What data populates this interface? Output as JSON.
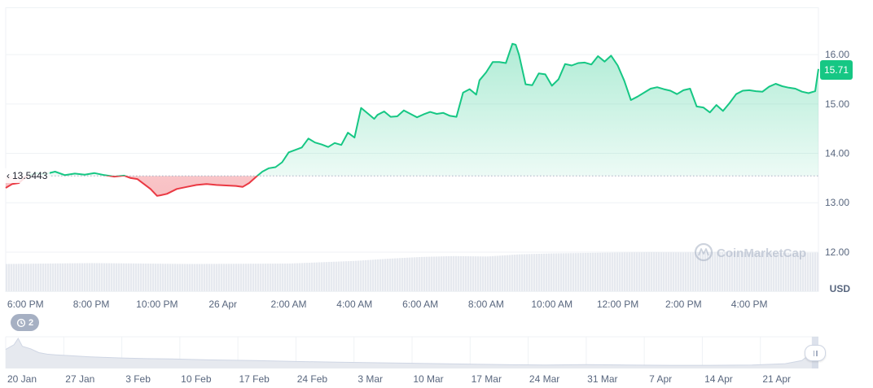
{
  "colors": {
    "up": "#16c784",
    "down": "#ea3943",
    "grid": "#eff2f5",
    "volume": "#e6e9ef",
    "text": "#58667e"
  },
  "watermark": {
    "icon": "coinmarketcap-logo-icon",
    "text": "CoinMarketCap"
  },
  "zoom_badge": {
    "icon": "history-icon",
    "count": "2"
  },
  "chart_data": [
    {
      "type": "area",
      "baseline_label": "13.5443",
      "baseline_value": 13.5443,
      "last_price_label": "15.71",
      "currency_label": "USD",
      "ylim": [
        11.2,
        16.95
      ],
      "y_ticks": [
        "16.00",
        "15.00",
        "14.00",
        "13.00",
        "12.00"
      ],
      "y_tick_values": [
        16,
        15,
        14,
        13,
        12
      ],
      "xlim": [
        17.4,
        42.1
      ],
      "x_ticks": [
        "6:00 PM",
        "8:00 PM",
        "10:00 PM",
        "26 Apr",
        "2:00 AM",
        "4:00 AM",
        "6:00 AM",
        "8:00 AM",
        "10:00 AM",
        "12:00 PM",
        "2:00 PM",
        "4:00 PM"
      ],
      "x_tick_values": [
        18,
        20,
        22,
        24,
        26,
        28,
        30,
        32,
        34,
        36,
        38,
        40
      ],
      "price_series": {
        "x": [
          17.4,
          17.6,
          17.8,
          18.0,
          18.3,
          18.6,
          18.9,
          19.2,
          19.5,
          19.8,
          20.1,
          20.4,
          20.7,
          21.0,
          21.2,
          21.4,
          21.6,
          21.8,
          22.0,
          22.1,
          22.3,
          22.6,
          22.9,
          23.2,
          23.5,
          23.8,
          24.1,
          24.4,
          24.6,
          24.8,
          25.0,
          25.2,
          25.4,
          25.6,
          25.8,
          26.0,
          26.2,
          26.4,
          26.6,
          26.8,
          27.0,
          27.2,
          27.4,
          27.6,
          27.8,
          28.0,
          28.2,
          28.4,
          28.6,
          28.7,
          28.9,
          29.1,
          29.3,
          29.5,
          29.7,
          29.9,
          30.1,
          30.3,
          30.5,
          30.7,
          30.9,
          31.1,
          31.3,
          31.5,
          31.7,
          31.8,
          32.0,
          32.2,
          32.4,
          32.6,
          32.8,
          32.9,
          33.0,
          33.2,
          33.4,
          33.6,
          33.8,
          34.0,
          34.2,
          34.4,
          34.6,
          34.8,
          35.0,
          35.2,
          35.4,
          35.6,
          35.8,
          36.0,
          36.2,
          36.4,
          36.6,
          36.8,
          37.0,
          37.2,
          37.4,
          37.6,
          37.8,
          38.0,
          38.2,
          38.4,
          38.6,
          38.8,
          39.0,
          39.2,
          39.4,
          39.6,
          39.8,
          40.0,
          40.2,
          40.4,
          40.6,
          40.8,
          41.0,
          41.2,
          41.4,
          41.6,
          41.8,
          42.0,
          42.1
        ],
        "values": [
          13.3,
          13.38,
          13.4,
          13.52,
          13.6,
          13.58,
          13.63,
          13.56,
          13.59,
          13.57,
          13.6,
          13.56,
          13.53,
          13.55,
          13.5,
          13.48,
          13.38,
          13.28,
          13.14,
          13.15,
          13.18,
          13.28,
          13.32,
          13.36,
          13.38,
          13.36,
          13.35,
          13.34,
          13.32,
          13.4,
          13.52,
          13.63,
          13.7,
          13.72,
          13.82,
          14.02,
          14.07,
          14.12,
          14.3,
          14.22,
          14.18,
          14.13,
          14.21,
          14.17,
          14.42,
          14.32,
          14.92,
          14.81,
          14.7,
          14.78,
          14.85,
          14.74,
          14.75,
          14.87,
          14.8,
          14.73,
          14.79,
          14.84,
          14.8,
          14.82,
          14.76,
          14.74,
          15.23,
          15.3,
          15.19,
          15.48,
          15.64,
          15.85,
          15.85,
          15.83,
          16.22,
          16.2,
          16.0,
          15.4,
          15.38,
          15.62,
          15.6,
          15.37,
          15.5,
          15.81,
          15.78,
          15.83,
          15.84,
          15.8,
          15.97,
          15.86,
          15.98,
          15.78,
          15.47,
          15.08,
          15.15,
          15.23,
          15.31,
          15.34,
          15.3,
          15.27,
          15.2,
          15.28,
          15.31,
          14.95,
          14.93,
          14.83,
          14.98,
          14.86,
          15.02,
          15.2,
          15.27,
          15.28,
          15.26,
          15.25,
          15.35,
          15.41,
          15.36,
          15.33,
          15.31,
          15.25,
          15.22,
          15.26,
          15.71
        ]
      },
      "volume_series": {
        "x": [
          17.4,
          20.0,
          23.0,
          26.0,
          28.0,
          29.0,
          30.0,
          31.0,
          32.0,
          33.0,
          34.0,
          35.0,
          36.0,
          37.0,
          38.0,
          39.0,
          40.0,
          41.0,
          42.1
        ],
        "values": [
          0.62,
          0.64,
          0.62,
          0.63,
          0.69,
          0.74,
          0.78,
          0.8,
          0.79,
          0.84,
          0.86,
          0.87,
          0.88,
          0.89,
          0.88,
          0.9,
          0.89,
          0.87,
          0.88
        ],
        "unit": "fraction of volume band"
      }
    },
    {
      "type": "area",
      "x_ticks": [
        "20 Jan",
        "27 Jan",
        "3 Feb",
        "10 Feb",
        "17 Feb",
        "24 Feb",
        "3 Mar",
        "10 Mar",
        "17 Mar",
        "24 Mar",
        "31 Mar",
        "7 Apr",
        "14 Apr",
        "21 Apr"
      ],
      "x_tick_values": [
        0,
        7,
        14,
        21,
        28,
        35,
        42,
        49,
        56,
        63,
        70,
        77,
        84,
        91
      ],
      "xlim": [
        0,
        98
      ],
      "history_series": {
        "x": [
          0,
          1,
          1.5,
          2,
          3,
          4,
          5,
          6,
          8,
          10,
          12,
          14,
          17,
          20,
          25,
          30,
          35,
          40,
          45,
          50,
          55,
          60,
          65,
          70,
          75,
          80,
          85,
          90,
          94,
          96,
          97,
          98
        ],
        "values": [
          0.6,
          0.75,
          0.95,
          0.7,
          0.62,
          0.5,
          0.45,
          0.43,
          0.4,
          0.37,
          0.35,
          0.33,
          0.31,
          0.3,
          0.27,
          0.25,
          0.22,
          0.2,
          0.18,
          0.16,
          0.14,
          0.12,
          0.11,
          0.12,
          0.11,
          0.1,
          0.1,
          0.11,
          0.15,
          0.25,
          0.45,
          0.7
        ],
        "unit": "relative price level"
      },
      "selected_range": [
        97.2,
        98
      ]
    }
  ]
}
